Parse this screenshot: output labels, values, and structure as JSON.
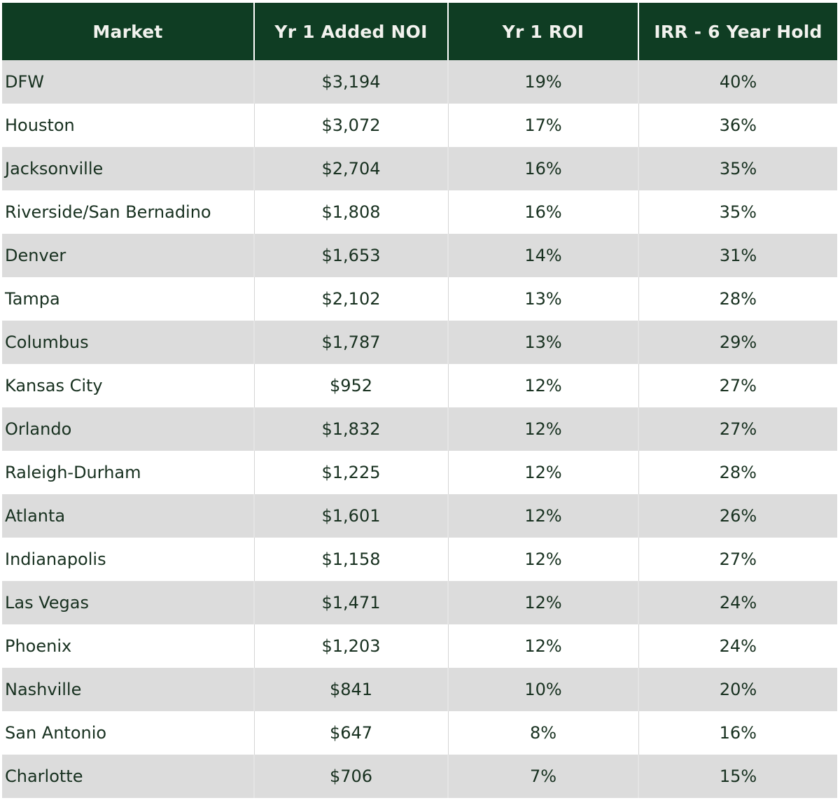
{
  "table": {
    "headers": [
      "Market",
      "Yr 1 Added NOI",
      "Yr 1 ROI",
      "IRR - 6 Year Hold"
    ],
    "rows": [
      [
        "DFW",
        "$3,194",
        "19%",
        "40%"
      ],
      [
        "Houston",
        "$3,072",
        "17%",
        "36%"
      ],
      [
        "Jacksonville",
        "$2,704",
        "16%",
        "35%"
      ],
      [
        "Riverside/San Bernadino",
        "$1,808",
        "16%",
        "35%"
      ],
      [
        "Denver",
        "$1,653",
        "14%",
        "31%"
      ],
      [
        "Tampa",
        "$2,102",
        "13%",
        "28%"
      ],
      [
        "Columbus",
        "$1,787",
        "13%",
        "29%"
      ],
      [
        "Kansas City",
        "$952",
        "12%",
        "27%"
      ],
      [
        "Orlando",
        "$1,832",
        "12%",
        "27%"
      ],
      [
        "Raleigh-Durham",
        "$1,225",
        "12%",
        "28%"
      ],
      [
        "Atlanta",
        "$1,601",
        "12%",
        "26%"
      ],
      [
        "Indianapolis",
        "$1,158",
        "12%",
        "27%"
      ],
      [
        "Las Vegas",
        "$1,471",
        "12%",
        "24%"
      ],
      [
        "Phoenix",
        "$1,203",
        "12%",
        "24%"
      ],
      [
        "Nashville",
        "$841",
        "10%",
        "20%"
      ],
      [
        "San Antonio",
        "$647",
        "8%",
        "16%"
      ],
      [
        "Charlotte",
        "$706",
        "7%",
        "15%"
      ]
    ]
  },
  "colors": {
    "header_bg": "#0f3d23",
    "header_text": "#f2f2ee",
    "row_alt_bg": "#dcdcdc",
    "row_bg": "#ffffff",
    "cell_text": "#17301f"
  }
}
